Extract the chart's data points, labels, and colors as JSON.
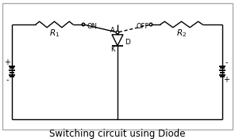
{
  "bg_color": "#ffffff",
  "line_color": "#000000",
  "title": "Switching circuit using Diode",
  "title_fontsize": 8.5,
  "R1_label": "$R_1$",
  "R2_label": "$R_2$",
  "ON_label": "ON",
  "OFF_label": "OFF",
  "A_label": "A",
  "K_label": "K",
  "D_label": "D",
  "plus_left": "+",
  "minus_left": "-",
  "plus_right": "+",
  "minus_right": "-"
}
